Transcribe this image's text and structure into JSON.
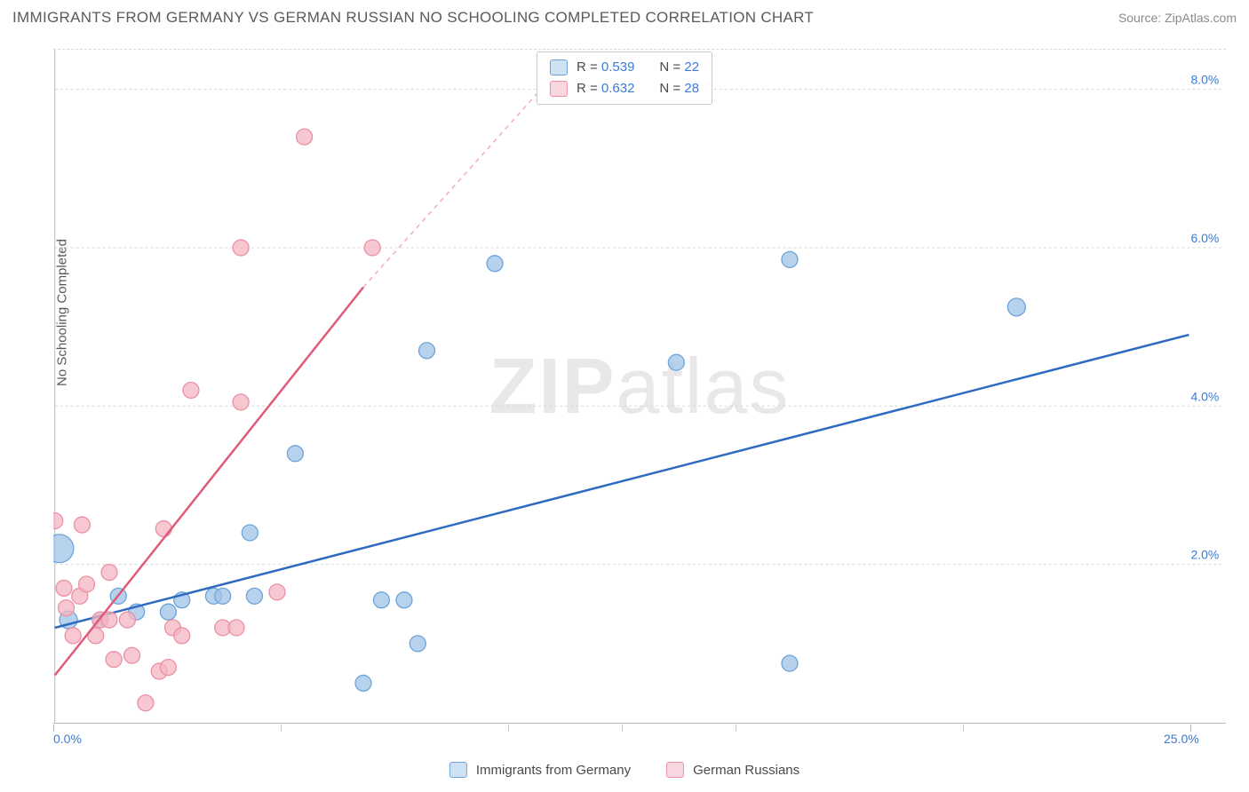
{
  "title": "IMMIGRANTS FROM GERMANY VS GERMAN RUSSIAN NO SCHOOLING COMPLETED CORRELATION CHART",
  "source_label": "Source: ZipAtlas.com",
  "y_axis_label": "No Schooling Completed",
  "watermark": "ZIPatlas",
  "chart": {
    "type": "scatter",
    "xlim": [
      0,
      25
    ],
    "ylim": [
      0,
      8.5
    ],
    "x_ticks": [
      0,
      25
    ],
    "y_ticks": [
      2,
      4,
      6,
      8
    ],
    "x_tick_format_suffix": "%",
    "y_tick_format_suffix": "%",
    "grid_color": "#d8d8d8",
    "background_color": "#ffffff",
    "axis_color": "#b8b8b8"
  },
  "series": [
    {
      "name": "Immigrants from Germany",
      "legend_label": "Immigrants from Germany",
      "marker_color_fill": "#9dc3e6",
      "marker_color_stroke": "#6ea3d8",
      "marker_opacity": 0.75,
      "line_color": "#2e6bc0",
      "line_dash_extrapolate": false,
      "R": "0.539",
      "N": "22",
      "trend_line": {
        "x1": 0,
        "y1": 1.2,
        "x2": 25,
        "y2": 4.9
      },
      "points": [
        {
          "x": 0.1,
          "y": 2.2,
          "r": 16
        },
        {
          "x": 0.3,
          "y": 1.3,
          "r": 10
        },
        {
          "x": 1.4,
          "y": 1.6,
          "r": 9
        },
        {
          "x": 1.0,
          "y": 1.3,
          "r": 9
        },
        {
          "x": 1.8,
          "y": 1.4,
          "r": 9
        },
        {
          "x": 2.5,
          "y": 1.4,
          "r": 9
        },
        {
          "x": 2.8,
          "y": 1.55,
          "r": 9
        },
        {
          "x": 3.5,
          "y": 1.6,
          "r": 9
        },
        {
          "x": 3.7,
          "y": 1.6,
          "r": 9
        },
        {
          "x": 4.4,
          "y": 1.6,
          "r": 9
        },
        {
          "x": 4.3,
          "y": 2.4,
          "r": 9
        },
        {
          "x": 5.3,
          "y": 3.4,
          "r": 9
        },
        {
          "x": 6.8,
          "y": 0.5,
          "r": 9
        },
        {
          "x": 7.2,
          "y": 1.55,
          "r": 9
        },
        {
          "x": 7.7,
          "y": 1.55,
          "r": 9
        },
        {
          "x": 8.0,
          "y": 1.0,
          "r": 9
        },
        {
          "x": 8.2,
          "y": 4.7,
          "r": 9
        },
        {
          "x": 9.7,
          "y": 5.8,
          "r": 9
        },
        {
          "x": 13.7,
          "y": 4.55,
          "r": 9
        },
        {
          "x": 16.2,
          "y": 5.85,
          "r": 9
        },
        {
          "x": 16.2,
          "y": 0.75,
          "r": 9
        },
        {
          "x": 21.2,
          "y": 5.25,
          "r": 10
        }
      ]
    },
    {
      "name": "German Russians",
      "legend_label": "German Russians",
      "marker_color_fill": "#f4b6c2",
      "marker_color_stroke": "#ec8fa5",
      "marker_opacity": 0.75,
      "line_color": "#e05a7a",
      "line_dash_extrapolate": true,
      "R": "0.632",
      "N": "28",
      "trend_line": {
        "x1": 0,
        "y1": 0.6,
        "x2": 6.8,
        "y2": 5.5
      },
      "trend_line_dashed": {
        "x1": 6.8,
        "y1": 5.5,
        "x2": 11.5,
        "y2": 8.5
      },
      "points": [
        {
          "x": 0.0,
          "y": 2.55,
          "r": 9
        },
        {
          "x": 0.2,
          "y": 1.7,
          "r": 9
        },
        {
          "x": 0.25,
          "y": 1.45,
          "r": 9
        },
        {
          "x": 0.4,
          "y": 1.1,
          "r": 9
        },
        {
          "x": 0.55,
          "y": 1.6,
          "r": 9
        },
        {
          "x": 0.6,
          "y": 2.5,
          "r": 9
        },
        {
          "x": 0.7,
          "y": 1.75,
          "r": 9
        },
        {
          "x": 0.9,
          "y": 1.1,
          "r": 9
        },
        {
          "x": 1.0,
          "y": 1.3,
          "r": 9
        },
        {
          "x": 1.2,
          "y": 1.9,
          "r": 9
        },
        {
          "x": 1.2,
          "y": 1.3,
          "r": 9
        },
        {
          "x": 1.3,
          "y": 0.8,
          "r": 9
        },
        {
          "x": 1.6,
          "y": 1.3,
          "r": 9
        },
        {
          "x": 1.7,
          "y": 0.85,
          "r": 9
        },
        {
          "x": 2.0,
          "y": 0.25,
          "r": 9
        },
        {
          "x": 2.3,
          "y": 0.65,
          "r": 9
        },
        {
          "x": 2.5,
          "y": 0.7,
          "r": 9
        },
        {
          "x": 2.4,
          "y": 2.45,
          "r": 9
        },
        {
          "x": 2.6,
          "y": 1.2,
          "r": 9
        },
        {
          "x": 2.8,
          "y": 1.1,
          "r": 9
        },
        {
          "x": 3.0,
          "y": 4.2,
          "r": 9
        },
        {
          "x": 3.7,
          "y": 1.2,
          "r": 9
        },
        {
          "x": 4.0,
          "y": 1.2,
          "r": 9
        },
        {
          "x": 4.1,
          "y": 6.0,
          "r": 9
        },
        {
          "x": 4.1,
          "y": 4.05,
          "r": 9
        },
        {
          "x": 4.9,
          "y": 1.65,
          "r": 9
        },
        {
          "x": 5.5,
          "y": 7.4,
          "r": 9
        },
        {
          "x": 7.0,
          "y": 6.0,
          "r": 9
        }
      ]
    }
  ],
  "legend_top": {
    "rows": [
      {
        "swatch_fill": "#cfe2f3",
        "swatch_stroke": "#6ea3d8",
        "R_label": "R = ",
        "R_val": "0.539",
        "N_label": "N = ",
        "N_val": "22"
      },
      {
        "swatch_fill": "#f8d7e0",
        "swatch_stroke": "#ec8fa5",
        "R_label": "R = ",
        "R_val": "0.632",
        "N_label": "N = ",
        "N_val": "28"
      }
    ]
  },
  "legend_bottom": [
    {
      "swatch_fill": "#cfe2f3",
      "swatch_stroke": "#6ea3d8",
      "label": "Immigrants from Germany"
    },
    {
      "swatch_fill": "#f8d7e0",
      "swatch_stroke": "#ec8fa5",
      "label": "German Russians"
    }
  ]
}
